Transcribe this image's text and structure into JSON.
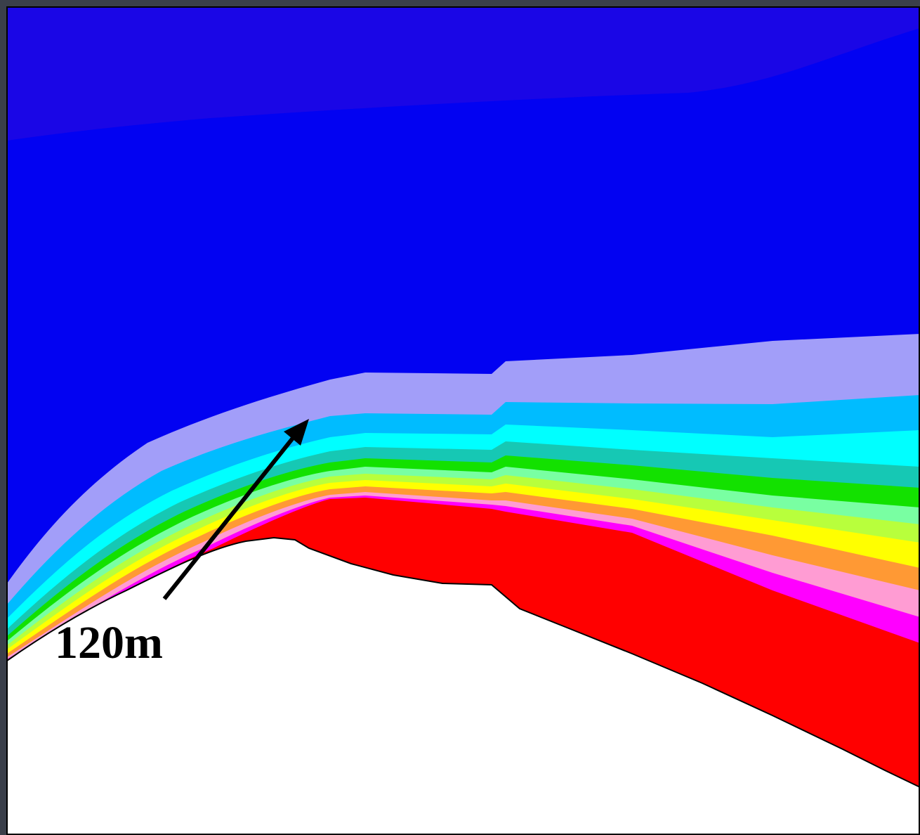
{
  "annotation": {
    "label": "120m"
  },
  "colors": {
    "background_strip": "#3a3f4a",
    "frame": "#000000",
    "sky_top_band": "#1a06e6",
    "sky": "#0202f2",
    "ground": "#ffffff",
    "bands": [
      {
        "name": "lavender-band",
        "color": "#a29ef9"
      },
      {
        "name": "sky-blue-band",
        "color": "#00bcff"
      },
      {
        "name": "cyan-band",
        "color": "#00ffff"
      },
      {
        "name": "teal-band",
        "color": "#16c8b4"
      },
      {
        "name": "green-band",
        "color": "#13e100"
      },
      {
        "name": "light-green-band",
        "color": "#79ffa2"
      },
      {
        "name": "yellow-green-band",
        "color": "#b8ff3c"
      },
      {
        "name": "yellow-band",
        "color": "#ffff00"
      },
      {
        "name": "orange-band",
        "color": "#ff9934"
      },
      {
        "name": "pink-band",
        "color": "#ff9cd3"
      },
      {
        "name": "magenta-band",
        "color": "#ff00ff"
      },
      {
        "name": "red-band",
        "color": "#ff0000"
      }
    ],
    "arrow": "#000000"
  }
}
